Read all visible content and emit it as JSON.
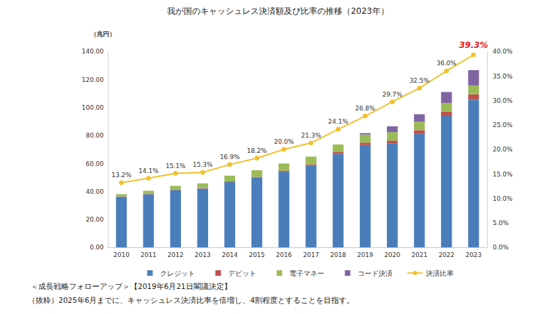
{
  "chart_data": {
    "type": "bar",
    "title": "我が国のキャッシュレス決済額及び比率の推移（2023年）",
    "ylabel": "（兆円）",
    "stacked": true,
    "grid": false,
    "legend": "bottom",
    "categories": [
      "2010",
      "2011",
      "2012",
      "2013",
      "2014",
      "2015",
      "2016",
      "2017",
      "2018",
      "2019",
      "2020",
      "2021",
      "2022",
      "2023"
    ],
    "ylim": [
      0,
      140
    ],
    "yticks": [
      {
        "value": 0,
        "label": "0.00"
      },
      {
        "value": 20,
        "label": "20.00"
      },
      {
        "value": 40,
        "label": "40.00"
      },
      {
        "value": 60,
        "label": "60.00"
      },
      {
        "value": 80,
        "label": "80.00"
      },
      {
        "value": 100,
        "label": "100.00"
      },
      {
        "value": 120,
        "label": "120.00"
      },
      {
        "value": 140,
        "label": "140.00"
      }
    ],
    "y2lim": [
      0,
      40
    ],
    "y2ticks": [
      {
        "value": 0,
        "label": "0.0%"
      },
      {
        "value": 5,
        "label": "5.0%"
      },
      {
        "value": 10,
        "label": "10.0%"
      },
      {
        "value": 15,
        "label": "15.0%"
      },
      {
        "value": 20,
        "label": "20.0%"
      },
      {
        "value": 25,
        "label": "25.0%"
      },
      {
        "value": 30,
        "label": "30.0%"
      },
      {
        "value": 35,
        "label": "35.0%"
      },
      {
        "value": 40,
        "label": "40.0%"
      }
    ],
    "series": [
      {
        "name": "クレジット",
        "type": "bar",
        "color": "#4a7ebb",
        "values": [
          36.1,
          38.0,
          41.0,
          42.0,
          46.6,
          49.8,
          54.0,
          58.4,
          66.7,
          73.1,
          74.1,
          81.0,
          93.8,
          105.6
        ]
      },
      {
        "name": "デビット",
        "type": "bar",
        "color": "#c0504d",
        "values": [
          0.3,
          0.4,
          0.4,
          0.4,
          0.5,
          0.6,
          0.8,
          0.9,
          1.3,
          1.7,
          2.2,
          2.7,
          3.2,
          3.7
        ]
      },
      {
        "name": "電子マネー",
        "type": "bar",
        "color": "#9bbb59",
        "values": [
          1.6,
          2.0,
          2.5,
          3.3,
          4.1,
          4.7,
          5.1,
          5.5,
          5.5,
          5.8,
          6.0,
          6.0,
          6.1,
          6.4
        ]
      },
      {
        "name": "コード決済",
        "type": "bar",
        "color": "#8064a2",
        "values": [
          0,
          0,
          0,
          0,
          0,
          0,
          0,
          0,
          0,
          1.0,
          4.2,
          5.4,
          7.9,
          10.9
        ]
      },
      {
        "name": "決済比率",
        "type": "line",
        "axis": "y2",
        "color": "#f2c12e",
        "marker": "circle",
        "data_labels": true,
        "values": [
          13.2,
          14.1,
          15.1,
          15.3,
          16.9,
          18.2,
          20.0,
          21.3,
          24.1,
          26.8,
          29.7,
          32.5,
          36.0,
          39.3
        ],
        "value_labels": [
          "13.2%",
          "14.1%",
          "15.1%",
          "15.3%",
          "16.9%",
          "18.2%",
          "20.0%",
          "21.3%",
          "24.1%",
          "26.8%",
          "29.7%",
          "32.5%",
          "36.0%",
          "39.3%"
        ]
      }
    ],
    "annotations": [
      "＜成長戦略フォローアップ＞【2019年6月21日閣議決定】",
      "（抜粋）2025年6月までに、キャッシュレス決済比率を倍増し、4割程度とすることを目指す。"
    ]
  }
}
